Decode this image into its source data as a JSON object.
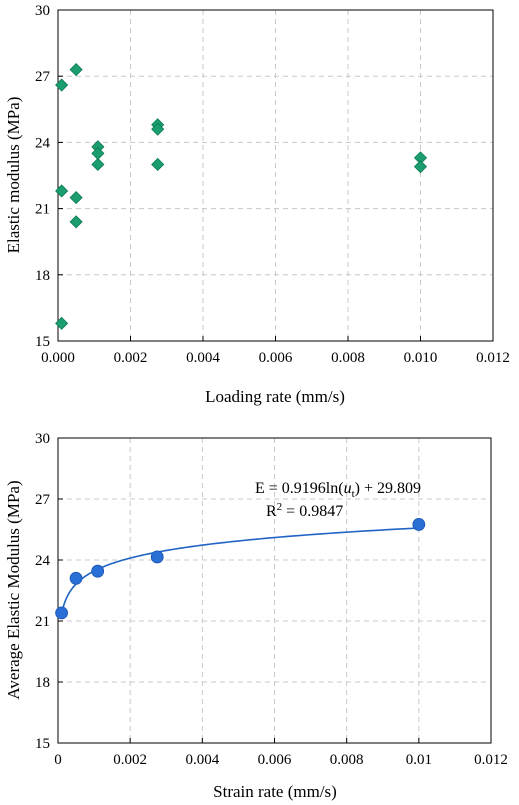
{
  "chart_data": [
    {
      "type": "scatter",
      "xlabel": "Loading rate (mm/s)",
      "ylabel": "Elastic modulus (MPa)",
      "xlim": [
        0,
        0.012
      ],
      "ylim": [
        15,
        30
      ],
      "xticks": [
        "0.000",
        "0.002",
        "0.004",
        "0.006",
        "0.008",
        "0.010",
        "0.012"
      ],
      "yticks": [
        "15",
        "18",
        "21",
        "24",
        "27",
        "30"
      ],
      "grid": true,
      "marker": "diamond",
      "color": "#1a9e6e",
      "points": [
        {
          "x": 0.0001,
          "y": 26.6
        },
        {
          "x": 0.0001,
          "y": 21.8
        },
        {
          "x": 0.0001,
          "y": 15.8
        },
        {
          "x": 0.0005,
          "y": 27.3
        },
        {
          "x": 0.0005,
          "y": 21.5
        },
        {
          "x": 0.0005,
          "y": 20.4
        },
        {
          "x": 0.0011,
          "y": 23.8
        },
        {
          "x": 0.0011,
          "y": 23.5
        },
        {
          "x": 0.0011,
          "y": 23.0
        },
        {
          "x": 0.00275,
          "y": 24.8
        },
        {
          "x": 0.00275,
          "y": 24.6
        },
        {
          "x": 0.00275,
          "y": 23.0
        },
        {
          "x": 0.01,
          "y": 23.3
        },
        {
          "x": 0.01,
          "y": 22.9
        }
      ]
    },
    {
      "type": "scatter",
      "xlabel": "Strain rate (mm/s)",
      "ylabel": "Average Elastic Modulus (MPa)",
      "xlim": [
        0,
        0.012
      ],
      "ylim": [
        15,
        30
      ],
      "xticks": [
        "0",
        "0.002",
        "0.004",
        "0.006",
        "0.008",
        "0.01",
        "0.012"
      ],
      "yticks": [
        "15",
        "18",
        "21",
        "24",
        "27",
        "30"
      ],
      "grid": true,
      "marker": "circle",
      "color": "#2a6fd6",
      "points": [
        {
          "x": 0.0001,
          "y": 21.4
        },
        {
          "x": 0.0005,
          "y": 23.1
        },
        {
          "x": 0.0011,
          "y": 23.45
        },
        {
          "x": 0.00275,
          "y": 24.15
        },
        {
          "x": 0.01,
          "y": 25.75
        }
      ],
      "fit": {
        "type": "log",
        "a": 0.9196,
        "b": 29.809
      },
      "annotation": {
        "equation_pre": "E = 0.9196ln(",
        "equation_var": "u",
        "equation_sub": "t",
        "equation_post": ") + 29.809",
        "r2_label": "R",
        "r2_sup": "2",
        "r2_value": " = 0.9847"
      }
    }
  ]
}
